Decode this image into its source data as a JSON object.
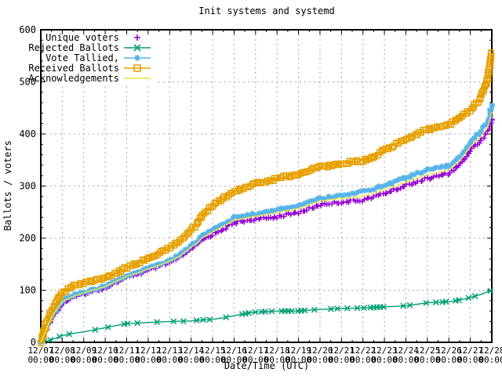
{
  "title": "Init systems and systemd",
  "chart_data": {
    "type": "line",
    "title": "Init systems and systemd",
    "xlabel": "Date/Time (UTC)",
    "ylabel": "Ballots / voters",
    "ylim": [
      0,
      600
    ],
    "y_ticks": [
      0,
      100,
      200,
      300,
      400,
      500,
      600
    ],
    "y_minor_step": 20,
    "x_tick_labels": [
      "12/07",
      "12/08",
      "12/09",
      "12/10",
      "12/11",
      "12/12",
      "12/13",
      "12/14",
      "12/15",
      "12/16",
      "12/17",
      "12/18",
      "12/19",
      "12/20",
      "12/21",
      "12/22",
      "12/23",
      "12/24",
      "12/25",
      "12/26",
      "12/27",
      "12/28"
    ],
    "x_tick_sublabel": "00:00",
    "x_days": [
      7,
      28
    ],
    "grid": true,
    "legend_position": "top-left-opaque",
    "grid_color": "#a8a8a8",
    "border_color": "#000000",
    "series": [
      {
        "name": "Unique voters",
        "color": "#9400d3",
        "marker": "plus",
        "line": false,
        "points": [
          [
            7,
            0
          ],
          [
            7.3,
            28
          ],
          [
            7.5,
            47
          ],
          [
            8,
            75
          ],
          [
            8.5,
            86
          ],
          [
            9,
            93
          ],
          [
            9.5,
            99
          ],
          [
            10,
            105
          ],
          [
            10.5,
            115
          ],
          [
            11,
            125
          ],
          [
            11.5,
            131
          ],
          [
            12,
            138
          ],
          [
            12.5,
            145
          ],
          [
            13,
            153
          ],
          [
            13.5,
            163
          ],
          [
            14,
            179
          ],
          [
            14.3,
            188
          ],
          [
            14.5,
            196
          ],
          [
            15,
            206
          ],
          [
            15.5,
            218
          ],
          [
            16,
            229
          ],
          [
            16.5,
            233
          ],
          [
            17,
            236
          ],
          [
            17.5,
            238
          ],
          [
            18,
            241
          ],
          [
            18.5,
            245
          ],
          [
            19,
            249
          ],
          [
            19.5,
            256
          ],
          [
            20,
            264
          ],
          [
            20.5,
            267
          ],
          [
            21,
            269
          ],
          [
            21.5,
            271
          ],
          [
            22,
            273
          ],
          [
            22.5,
            279
          ],
          [
            23,
            286
          ],
          [
            23.5,
            293
          ],
          [
            24,
            301
          ],
          [
            24.5,
            308
          ],
          [
            25,
            314
          ],
          [
            25.5,
            319
          ],
          [
            26,
            324
          ],
          [
            26.5,
            340
          ],
          [
            27,
            369
          ],
          [
            27.5,
            388
          ],
          [
            27.8,
            405
          ],
          [
            28,
            428
          ]
        ]
      },
      {
        "name": "Rejected Ballots",
        "color": "#009e73",
        "marker": "cross",
        "line": true,
        "points": [
          [
            7,
            0
          ],
          [
            7.5,
            5
          ],
          [
            8,
            13
          ],
          [
            8.5,
            17
          ],
          [
            9,
            20
          ],
          [
            9.5,
            24
          ],
          [
            10,
            28
          ],
          [
            10.5,
            32
          ],
          [
            11,
            36
          ],
          [
            11.5,
            37
          ],
          [
            12,
            38
          ],
          [
            12.5,
            39
          ],
          [
            13,
            40
          ],
          [
            14,
            41
          ],
          [
            14.5,
            43
          ],
          [
            15,
            44
          ],
          [
            15.5,
            47
          ],
          [
            16,
            51
          ],
          [
            16.5,
            55
          ],
          [
            17,
            58
          ],
          [
            17.5,
            59
          ],
          [
            18,
            60
          ],
          [
            19,
            60
          ],
          [
            19.5,
            62
          ],
          [
            20,
            63
          ],
          [
            20.5,
            64
          ],
          [
            21,
            65
          ],
          [
            22,
            66
          ],
          [
            22.5,
            67
          ],
          [
            23,
            68
          ],
          [
            23.5,
            69
          ],
          [
            24,
            70
          ],
          [
            24.5,
            73
          ],
          [
            25,
            76
          ],
          [
            25.5,
            77
          ],
          [
            26,
            78
          ],
          [
            26.5,
            81
          ],
          [
            27,
            86
          ],
          [
            27.5,
            92
          ],
          [
            28,
            100
          ]
        ]
      },
      {
        "name": "Vote Tallied,",
        "color": "#56b4e9",
        "marker": "asterisk",
        "line": true,
        "points": [
          [
            7,
            0
          ],
          [
            7.3,
            30
          ],
          [
            7.5,
            50
          ],
          [
            8,
            80
          ],
          [
            8.5,
            90
          ],
          [
            9,
            96
          ],
          [
            9.5,
            102
          ],
          [
            10,
            108
          ],
          [
            10.5,
            118
          ],
          [
            11,
            128
          ],
          [
            11.5,
            135
          ],
          [
            12,
            143
          ],
          [
            12.5,
            150
          ],
          [
            13,
            158
          ],
          [
            13.5,
            168
          ],
          [
            14,
            186
          ],
          [
            14.3,
            196
          ],
          [
            14.5,
            205
          ],
          [
            15,
            216
          ],
          [
            15.5,
            228
          ],
          [
            16,
            239
          ],
          [
            16.5,
            243
          ],
          [
            17,
            246
          ],
          [
            17.5,
            250
          ],
          [
            18,
            254
          ],
          [
            18.5,
            259
          ],
          [
            19,
            264
          ],
          [
            19.5,
            270
          ],
          [
            20,
            276
          ],
          [
            20.5,
            279
          ],
          [
            21,
            281
          ],
          [
            21.5,
            285
          ],
          [
            22,
            289
          ],
          [
            22.5,
            295
          ],
          [
            23,
            301
          ],
          [
            23.5,
            308
          ],
          [
            24,
            316
          ],
          [
            24.5,
            324
          ],
          [
            25,
            331
          ],
          [
            25.5,
            335
          ],
          [
            26,
            339
          ],
          [
            26.5,
            355
          ],
          [
            27,
            384
          ],
          [
            27.5,
            405
          ],
          [
            27.8,
            425
          ],
          [
            28,
            455
          ]
        ]
      },
      {
        "name": "Received Ballots",
        "color": "#e69f00",
        "marker": "square",
        "line": true,
        "points": [
          [
            7,
            0
          ],
          [
            7.3,
            40
          ],
          [
            7.5,
            62
          ],
          [
            8,
            95
          ],
          [
            8.5,
            107
          ],
          [
            9,
            115
          ],
          [
            9.5,
            118
          ],
          [
            10,
            123
          ],
          [
            10.5,
            133
          ],
          [
            11,
            143
          ],
          [
            11.5,
            152
          ],
          [
            12,
            161
          ],
          [
            12.5,
            170
          ],
          [
            13,
            181
          ],
          [
            13.5,
            196
          ],
          [
            14,
            216
          ],
          [
            14.3,
            228
          ],
          [
            14.5,
            245
          ],
          [
            15,
            262
          ],
          [
            15.5,
            277
          ],
          [
            16,
            289
          ],
          [
            16.5,
            298
          ],
          [
            17,
            306
          ],
          [
            17.5,
            310
          ],
          [
            18,
            314
          ],
          [
            18.5,
            319
          ],
          [
            19,
            324
          ],
          [
            19.5,
            330
          ],
          [
            20,
            336
          ],
          [
            20.5,
            340
          ],
          [
            21,
            344
          ],
          [
            21.5,
            346
          ],
          [
            22,
            349
          ],
          [
            22.5,
            357
          ],
          [
            23,
            369
          ],
          [
            23.5,
            380
          ],
          [
            24,
            391
          ],
          [
            24.5,
            400
          ],
          [
            25,
            409
          ],
          [
            25.5,
            413
          ],
          [
            26,
            417
          ],
          [
            26.5,
            430
          ],
          [
            27,
            447
          ],
          [
            27.5,
            470
          ],
          [
            27.8,
            505
          ],
          [
            28,
            555
          ]
        ]
      },
      {
        "name": "Acknowledgements",
        "color": "#f0e442",
        "marker": "none",
        "line": true,
        "points": [
          [
            7,
            0
          ],
          [
            7.3,
            29
          ],
          [
            7.5,
            49
          ],
          [
            8,
            78
          ],
          [
            8.5,
            88
          ],
          [
            9,
            95
          ],
          [
            9.5,
            101
          ],
          [
            10,
            107
          ],
          [
            10.5,
            117
          ],
          [
            11,
            127
          ],
          [
            11.5,
            133
          ],
          [
            12,
            141
          ],
          [
            12.5,
            148
          ],
          [
            13,
            156
          ],
          [
            13.5,
            166
          ],
          [
            14,
            183
          ],
          [
            14.3,
            191
          ],
          [
            14.5,
            200
          ],
          [
            15,
            212
          ],
          [
            15.5,
            223
          ],
          [
            16,
            234
          ],
          [
            16.5,
            238
          ],
          [
            17,
            242
          ],
          [
            17.5,
            245
          ],
          [
            18,
            249
          ],
          [
            18.5,
            253
          ],
          [
            19,
            257
          ],
          [
            19.5,
            264
          ],
          [
            20,
            271
          ],
          [
            20.5,
            274
          ],
          [
            21,
            276
          ],
          [
            21.5,
            278
          ],
          [
            22,
            280
          ],
          [
            22.5,
            286
          ],
          [
            23,
            293
          ],
          [
            23.5,
            300
          ],
          [
            24,
            308
          ],
          [
            24.5,
            315
          ],
          [
            25,
            322
          ],
          [
            25.5,
            326
          ],
          [
            26,
            331
          ],
          [
            26.5,
            348
          ],
          [
            27,
            376
          ],
          [
            27.5,
            395
          ],
          [
            27.8,
            412
          ],
          [
            28,
            443
          ]
        ]
      }
    ]
  }
}
